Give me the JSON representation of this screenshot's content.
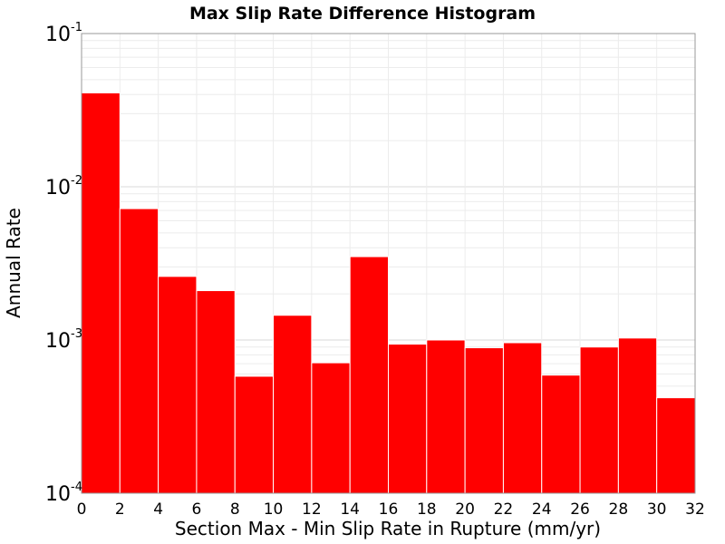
{
  "chart_data": {
    "type": "bar",
    "title": "Max Slip Rate Difference Histogram",
    "xlabel": "Section Max - Min Slip Rate in Rupture (mm/yr)",
    "ylabel": "Annual Rate",
    "xlim": [
      0,
      32
    ],
    "ylim": [
      0.0001,
      0.1
    ],
    "yscale": "log",
    "bar_width": 2,
    "bar_color": "#ff0000",
    "grid": true,
    "x_ticks": [
      0,
      2,
      4,
      6,
      8,
      10,
      12,
      14,
      16,
      18,
      20,
      22,
      24,
      26,
      28,
      30,
      32
    ],
    "y_ticks": [
      {
        "base": "10",
        "exp": "-4",
        "value": 0.0001
      },
      {
        "base": "10",
        "exp": "-3",
        "value": 0.001
      },
      {
        "base": "10",
        "exp": "-2",
        "value": 0.01
      },
      {
        "base": "10",
        "exp": "-1",
        "value": 0.1
      }
    ],
    "bins": [
      {
        "start": 0,
        "value": 0.041
      },
      {
        "start": 2,
        "value": 0.0072
      },
      {
        "start": 4,
        "value": 0.0026
      },
      {
        "start": 6,
        "value": 0.0021
      },
      {
        "start": 8,
        "value": 0.00058
      },
      {
        "start": 10,
        "value": 0.00145
      },
      {
        "start": 12,
        "value": 0.00071
      },
      {
        "start": 14,
        "value": 0.0035
      },
      {
        "start": 16,
        "value": 0.00094
      },
      {
        "start": 18,
        "value": 0.001
      },
      {
        "start": 20,
        "value": 0.00089
      },
      {
        "start": 22,
        "value": 0.00096
      },
      {
        "start": 24,
        "value": 0.00059
      },
      {
        "start": 26,
        "value": 0.0009
      },
      {
        "start": 28,
        "value": 0.00103
      },
      {
        "start": 30,
        "value": 0.00042
      }
    ]
  }
}
